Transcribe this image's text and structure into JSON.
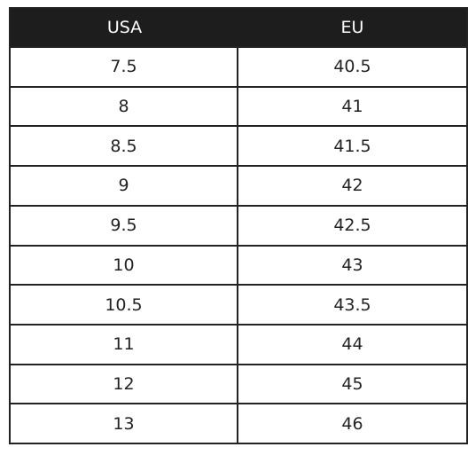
{
  "table": {
    "header": [
      "USA",
      "EU"
    ],
    "rows": [
      [
        "7.5",
        "40.5"
      ],
      [
        "8",
        "41"
      ],
      [
        "8.5",
        "41.5"
      ],
      [
        "9",
        "42"
      ],
      [
        "9.5",
        "42.5"
      ],
      [
        "10",
        "43"
      ],
      [
        "10.5",
        "43.5"
      ],
      [
        "11",
        "44"
      ],
      [
        "12",
        "45"
      ],
      [
        "13",
        "46"
      ]
    ]
  }
}
